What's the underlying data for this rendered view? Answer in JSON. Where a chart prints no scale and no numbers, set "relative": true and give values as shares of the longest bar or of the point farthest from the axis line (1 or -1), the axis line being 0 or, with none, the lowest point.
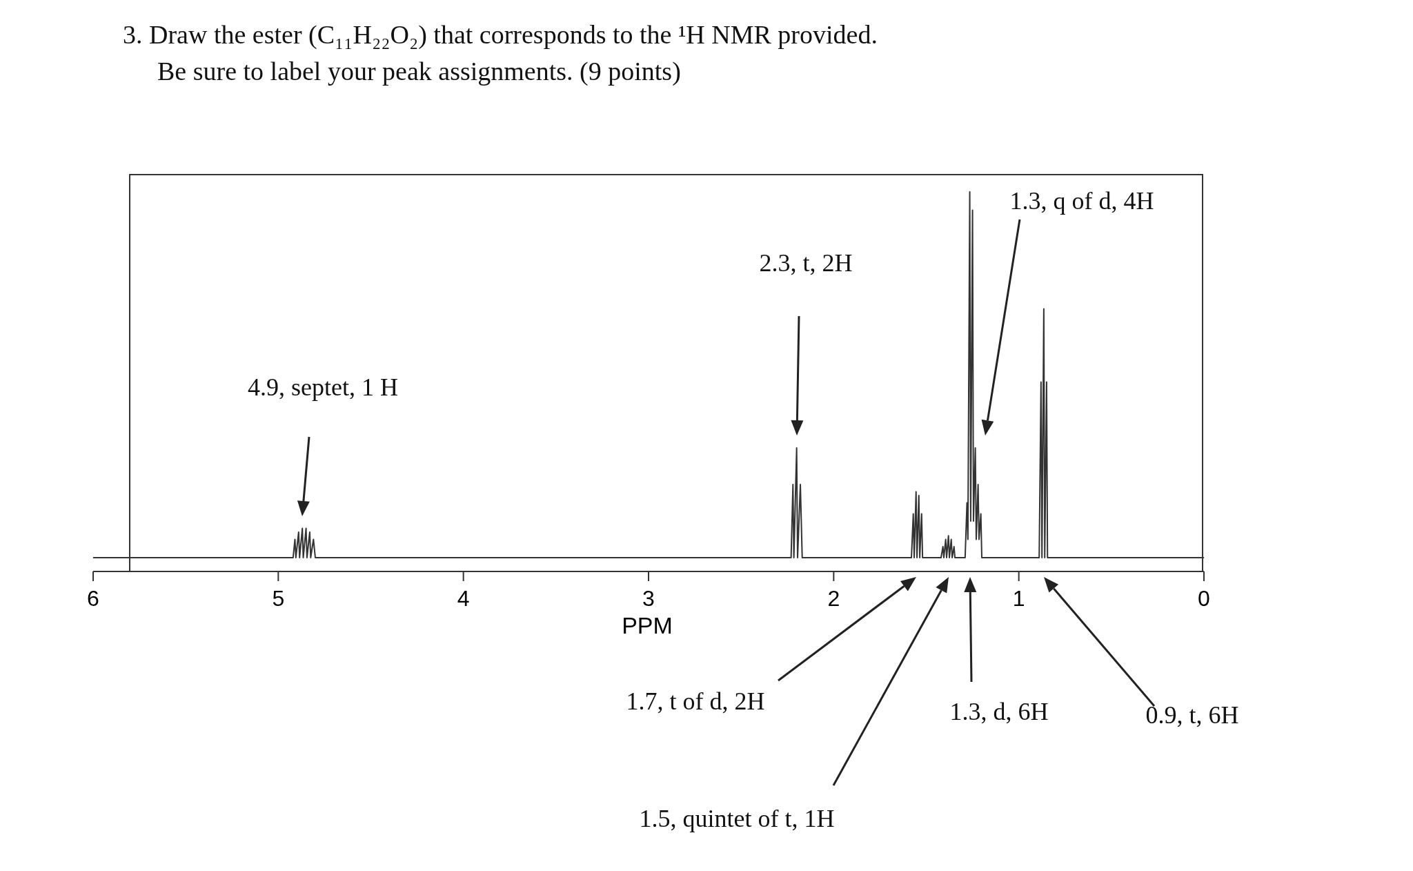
{
  "chart_data": {
    "type": "line",
    "title": "3. Draw the ester (C₁₁H₂₂O₂) that corresponds to the ¹H NMR provided.",
    "subtitle": "Be sure to label your peak assignments. (9 points)",
    "xlabel": "PPM",
    "relative": true,
    "xlim": [
      6,
      0
    ],
    "xticks": [
      6,
      5,
      4,
      3,
      2,
      1,
      0
    ],
    "tick_labels": "x",
    "grid": false,
    "line_style": "solid",
    "series": [
      {
        "color": "#333333",
        "x": [
          6,
          4.92,
          4.91,
          4.905,
          4.89,
          4.885,
          4.87,
          4.865,
          4.85,
          4.845,
          4.83,
          4.825,
          4.81,
          4.8,
          2.23,
          2.22,
          2.215,
          2.2,
          2.195,
          2.18,
          2.17,
          1.58,
          1.57,
          1.565,
          1.555,
          1.55,
          1.54,
          1.535,
          1.525,
          1.52,
          1.42,
          1.41,
          1.405,
          1.395,
          1.39,
          1.38,
          1.375,
          1.365,
          1.36,
          1.35,
          1.345,
          1.29,
          1.28,
          1.275,
          1.265,
          1.26,
          1.25,
          1.245,
          1.235,
          1.23,
          1.22,
          1.215,
          1.205,
          1.2,
          0.89,
          0.88,
          0.875,
          0.865,
          0.86,
          0.85,
          0.845,
          0
        ],
        "values": [
          0,
          0,
          0.05,
          0,
          0.07,
          0,
          0.08,
          0,
          0.08,
          0,
          0.07,
          0,
          0.05,
          0,
          0,
          0.2,
          0,
          0.3,
          0,
          0.2,
          0,
          0,
          0.12,
          0,
          0.18,
          0,
          0.17,
          0,
          0.12,
          0,
          0,
          0.03,
          0,
          0.05,
          0,
          0.06,
          0,
          0.05,
          0,
          0.03,
          0,
          0,
          0.15,
          0.05,
          1,
          0.1,
          0.95,
          0.1,
          0.3,
          0.05,
          0.2,
          0.05,
          0.12,
          0,
          0,
          0.48,
          0,
          0.68,
          0,
          0.48,
          0,
          0
        ]
      }
    ],
    "annotations": [
      "4.9, septet, 1 H",
      "2.3, t, 2H",
      "1.7, t of d, 2H",
      "1.5, quintet of t, 1H",
      "1.3, q of d, 4H",
      "1.3, d, 6H",
      "0.9, t, 6H"
    ]
  }
}
